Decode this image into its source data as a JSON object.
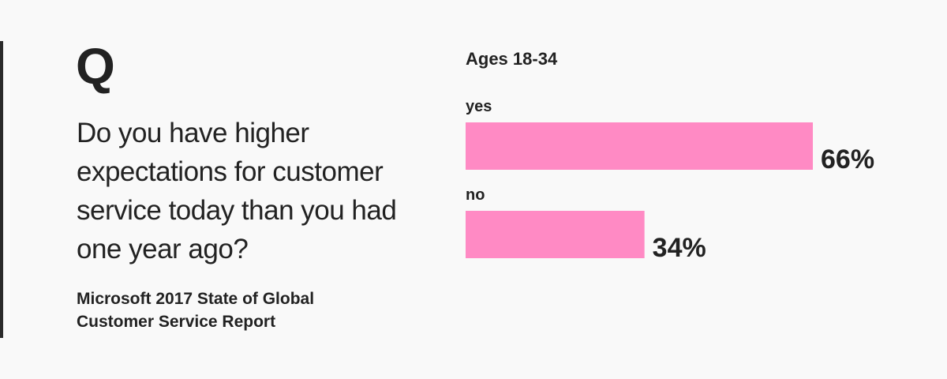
{
  "chart_data": {
    "type": "bar",
    "orientation": "horizontal",
    "badge": "Q",
    "question": "Do you have higher expectations for customer service today than you had one year ago?",
    "source": "Microsoft 2017 State of Global Customer Service Report",
    "title": "Ages 18-34",
    "categories": [
      "yes",
      "no"
    ],
    "values": [
      66,
      34
    ],
    "value_labels": [
      "66%",
      "34%"
    ],
    "color": "#ff8ac4"
  }
}
